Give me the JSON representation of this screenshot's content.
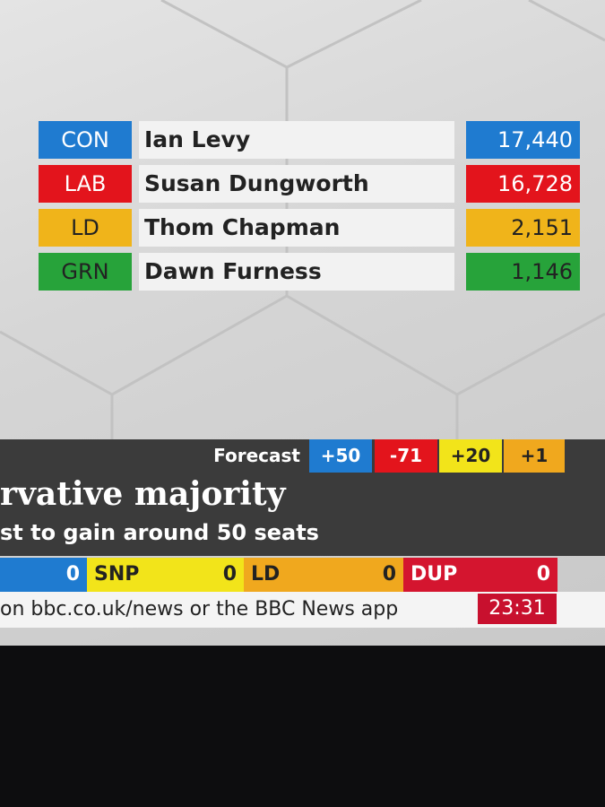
{
  "results": [
    {
      "party": "CON",
      "candidate": "Ian Levy",
      "votes": "17,440"
    },
    {
      "party": "LAB",
      "candidate": "Susan Dungworth",
      "votes": "16,728"
    },
    {
      "party": "LD",
      "candidate": "Thom Chapman",
      "votes": "2,151"
    },
    {
      "party": "GRN",
      "candidate": "Dawn Furness",
      "votes": "1,146"
    }
  ],
  "forecast": {
    "label": "Forecast",
    "changes": [
      "+50",
      "-71",
      "+20",
      "+1"
    ]
  },
  "headline": "rvative majority",
  "subheadline": "st to gain around 50 seats",
  "tally": [
    {
      "seats": "0"
    },
    {
      "party": "SNP",
      "seats": "0"
    },
    {
      "party": "LD",
      "seats": "0"
    },
    {
      "party": "DUP",
      "seats": "0"
    }
  ],
  "ticker": "on bbc.co.uk/news or the BBC News app",
  "clock": "23:31"
}
